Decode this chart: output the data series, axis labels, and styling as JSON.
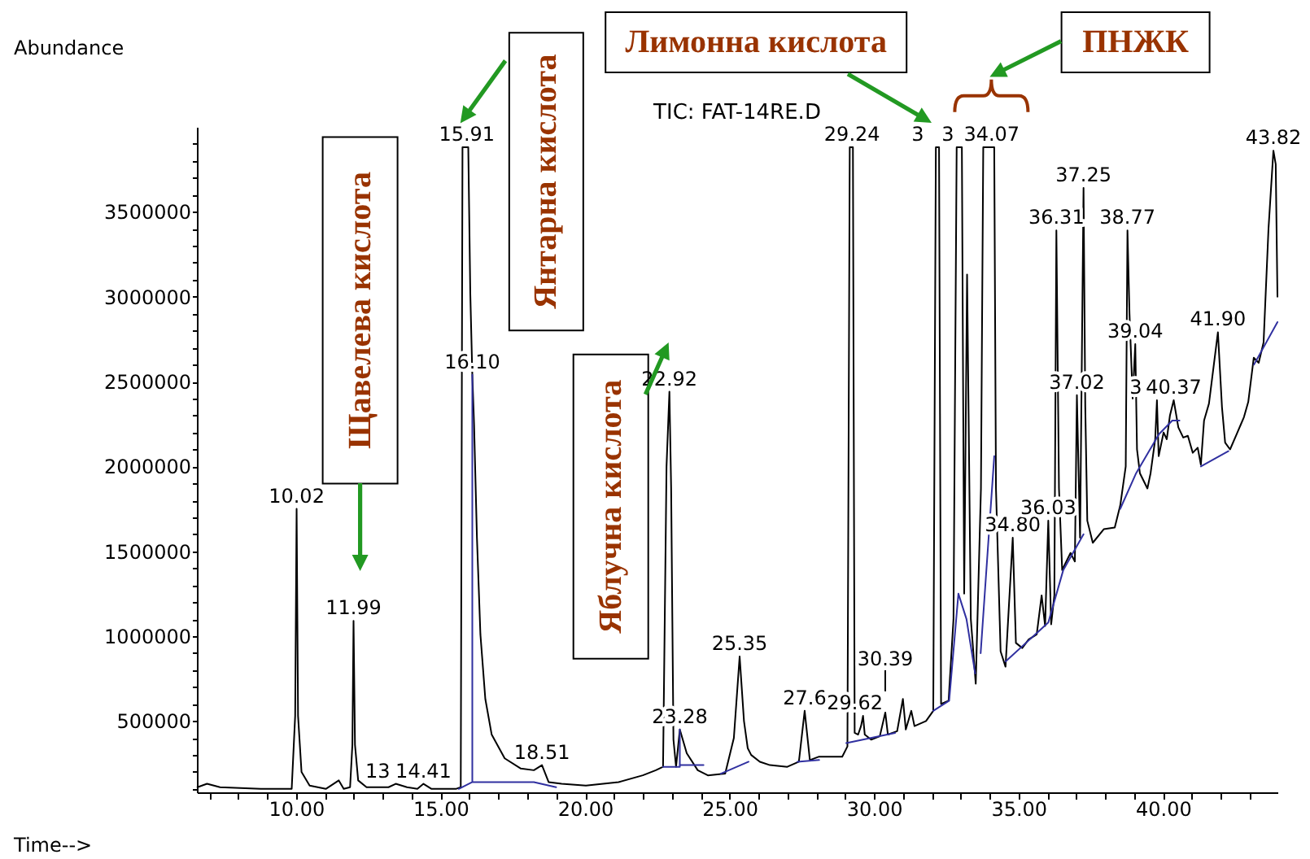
{
  "chart_data": {
    "type": "line",
    "title": "TIC: FAT-14RE.D",
    "xlabel": "Time-->",
    "ylabel": "Abundance",
    "xlim": [
      6.57,
      43.96
    ],
    "ylim": [
      80000,
      4000000
    ],
    "xticks": [
      {
        "value": 7,
        "label": null
      },
      {
        "value": 8,
        "label": null
      },
      {
        "value": 9,
        "label": null
      },
      {
        "value": 10,
        "label": "10.00"
      },
      {
        "value": 11,
        "label": null
      },
      {
        "value": 12,
        "label": null
      },
      {
        "value": 13,
        "label": null
      },
      {
        "value": 14,
        "label": null
      },
      {
        "value": 15,
        "label": "15.00"
      },
      {
        "value": 16,
        "label": null
      },
      {
        "value": 17,
        "label": null
      },
      {
        "value": 18,
        "label": null
      },
      {
        "value": 19,
        "label": null
      },
      {
        "value": 20,
        "label": "20.00"
      },
      {
        "value": 21,
        "label": null
      },
      {
        "value": 22,
        "label": null
      },
      {
        "value": 23,
        "label": null
      },
      {
        "value": 24,
        "label": null
      },
      {
        "value": 25,
        "label": "25.00"
      },
      {
        "value": 26,
        "label": null
      },
      {
        "value": 27,
        "label": null
      },
      {
        "value": 28,
        "label": null
      },
      {
        "value": 29,
        "label": null
      },
      {
        "value": 30,
        "label": "30.00"
      },
      {
        "value": 31,
        "label": null
      },
      {
        "value": 32,
        "label": null
      },
      {
        "value": 33,
        "label": null
      },
      {
        "value": 34,
        "label": null
      },
      {
        "value": 35,
        "label": "35.00"
      },
      {
        "value": 36,
        "label": null
      },
      {
        "value": 37,
        "label": null
      },
      {
        "value": 38,
        "label": null
      },
      {
        "value": 39,
        "label": null
      },
      {
        "value": 40,
        "label": "40.00"
      },
      {
        "value": 41,
        "label": null
      },
      {
        "value": 42,
        "label": null
      },
      {
        "value": 43,
        "label": null
      }
    ],
    "yticks": [
      {
        "value": 100000,
        "label": null
      },
      {
        "value": 200000,
        "label": null
      },
      {
        "value": 300000,
        "label": null
      },
      {
        "value": 400000,
        "label": null
      },
      500000,
      {
        "value": 600000,
        "label": null
      },
      {
        "value": 700000,
        "label": null
      },
      {
        "value": 800000,
        "label": null
      },
      {
        "value": 900000,
        "label": null
      },
      1000000,
      {
        "value": 1100000,
        "label": null
      },
      {
        "value": 1200000,
        "label": null
      },
      {
        "value": 1300000,
        "label": null
      },
      {
        "value": 1400000,
        "label": null
      },
      1500000,
      {
        "value": 1600000,
        "label": null
      },
      {
        "value": 1700000,
        "label": null
      },
      {
        "value": 1800000,
        "label": null
      },
      {
        "value": 1900000,
        "label": null
      },
      2000000,
      {
        "value": 2100000,
        "label": null
      },
      {
        "value": 2200000,
        "label": null
      },
      {
        "value": 2300000,
        "label": null
      },
      {
        "value": 2400000,
        "label": null
      },
      2500000,
      {
        "value": 2600000,
        "label": null
      },
      {
        "value": 2700000,
        "label": null
      },
      {
        "value": 2800000,
        "label": null
      },
      {
        "value": 2900000,
        "label": null
      },
      3000000,
      {
        "value": 3100000,
        "label": null
      },
      {
        "value": 3200000,
        "label": null
      },
      {
        "value": 3300000,
        "label": null
      },
      {
        "value": 3400000,
        "label": null
      },
      3500000,
      {
        "value": 3600000,
        "label": null
      },
      {
        "value": 3700000,
        "label": null
      },
      {
        "value": 3800000,
        "label": null
      },
      {
        "value": 3900000,
        "label": null
      }
    ],
    "series": [
      {
        "color": "#000000",
        "x": [
          6.59,
          6.92,
          7.37,
          8.78,
          9.85,
          9.97,
          10.02,
          10.07,
          10.19,
          10.47,
          11.03,
          11.48,
          11.65,
          11.87,
          11.95,
          11.99,
          12.04,
          12.15,
          12.44,
          13.2,
          13.45,
          13.84,
          14.2,
          14.41,
          14.69,
          15.53,
          15.7,
          15.76,
          15.96,
          16.03,
          16.1,
          16.16,
          16.26,
          16.38,
          16.55,
          16.77,
          17.22,
          17.78,
          18.23,
          18.51,
          18.74,
          19.19,
          20.03,
          21.16,
          22.0,
          22.45,
          22.7,
          22.82,
          22.92,
          22.98,
          23.06,
          23.15,
          23.28,
          23.52,
          23.9,
          24.25,
          24.85,
          25.15,
          25.35,
          25.5,
          25.63,
          25.75,
          26.05,
          26.4,
          27.0,
          27.4,
          27.6,
          27.78,
          28.1,
          28.9,
          29.08,
          29.16,
          29.27,
          29.33,
          29.45,
          29.55,
          29.62,
          29.68,
          29.9,
          30.2,
          30.39,
          30.48,
          30.8,
          31.0,
          31.1,
          31.29,
          31.4,
          31.8,
          32.05,
          32.14,
          32.25,
          32.32,
          32.58,
          32.75,
          32.86,
          33.04,
          33.12,
          33.22,
          33.35,
          33.52,
          33.7,
          33.78,
          34.16,
          34.22,
          34.38,
          34.55,
          34.8,
          34.91,
          35.13,
          35.35,
          35.63,
          35.8,
          35.92,
          36.03,
          36.13,
          36.24,
          36.31,
          36.4,
          36.51,
          36.8,
          36.95,
          37.02,
          37.13,
          37.25,
          37.31,
          37.38,
          37.57,
          37.95,
          38.33,
          38.52,
          38.71,
          38.77,
          38.84,
          38.95,
          39.04,
          39.1,
          39.2,
          39.46,
          39.57,
          39.73,
          39.79,
          39.85,
          40.02,
          40.13,
          40.24,
          40.37,
          40.53,
          40.7,
          40.86,
          41.03,
          41.2,
          41.31,
          41.42,
          41.59,
          41.9,
          42.04,
          42.15,
          42.32,
          42.55,
          42.8,
          42.95,
          43.14,
          43.31,
          43.48,
          43.65,
          43.82,
          43.9,
          43.96
        ],
        "values": [
          110000,
          130000,
          110000,
          100000,
          100000,
          530000,
          1750000,
          530000,
          200000,
          120000,
          100000,
          150000,
          100000,
          110000,
          360000,
          1090000,
          360000,
          150000,
          110000,
          110000,
          130000,
          110000,
          100000,
          130000,
          100000,
          100000,
          110000,
          3880000,
          3880000,
          3020000,
          2540000,
          2250000,
          1580000,
          1010000,
          630000,
          420000,
          280000,
          220000,
          210000,
          240000,
          140000,
          130000,
          120000,
          140000,
          180000,
          210000,
          230000,
          2000000,
          2440000,
          1870000,
          390000,
          230000,
          450000,
          310000,
          210000,
          180000,
          190000,
          400000,
          880000,
          500000,
          340000,
          300000,
          260000,
          240000,
          230000,
          260000,
          560000,
          270000,
          290000,
          290000,
          350000,
          3880000,
          3880000,
          430000,
          420000,
          470000,
          530000,
          420000,
          390000,
          410000,
          550000,
          420000,
          440000,
          630000,
          450000,
          560000,
          470000,
          500000,
          560000,
          3880000,
          3880000,
          600000,
          620000,
          1100000,
          3880000,
          3880000,
          1250000,
          3130000,
          1100000,
          720000,
          1870000,
          3880000,
          3880000,
          1870000,
          910000,
          820000,
          1580000,
          960000,
          930000,
          980000,
          1010000,
          1240000,
          1060000,
          1680000,
          1070000,
          1240000,
          3390000,
          1870000,
          1390000,
          1490000,
          1440000,
          2420000,
          1580000,
          3640000,
          2350000,
          1680000,
          1550000,
          1630000,
          1640000,
          1770000,
          2000000,
          3390000,
          2900000,
          2400000,
          2720000,
          2100000,
          1960000,
          1870000,
          1960000,
          2160000,
          2390000,
          2060000,
          2200000,
          2160000,
          2300000,
          2390000,
          2230000,
          2170000,
          2180000,
          2080000,
          2110000,
          2010000,
          2270000,
          2370000,
          2790000,
          2350000,
          2140000,
          2100000,
          2190000,
          2290000,
          2380000,
          2640000,
          2610000,
          2730000,
          3400000,
          3860000,
          3780000,
          3000000
        ]
      },
      {
        "color": "#3030a0",
        "x": [
          15.63,
          16.1,
          16.1,
          16.1,
          18.23,
          19.0,
          20.0,
          22.7,
          23.28,
          23.28,
          23.28,
          24.1,
          24.4,
          24.7,
          25.66,
          26.5,
          27.35,
          28.1,
          28.5,
          29.04,
          30.73,
          31.4,
          32.05,
          32.6,
          32.92,
          33.2,
          33.5,
          33.6,
          33.69,
          34.16,
          34.3,
          34.55,
          36.03,
          36.55,
          37.25,
          37.9,
          38.52,
          39.07,
          39.86,
          40.32,
          40.57,
          40.9,
          41.31,
          42.26,
          42.7,
          43.15,
          43.96
        ],
        "values": [
          100000,
          140000,
          2540000,
          140000,
          140000,
          110000,
          null,
          230000,
          230000,
          450000,
          240000,
          240000,
          null,
          190000,
          260000,
          null,
          260000,
          270000,
          null,
          370000,
          430000,
          null,
          560000,
          620000,
          1250000,
          1100000,
          780000,
          null,
          900000,
          2060000,
          null,
          850000,
          1080000,
          1390000,
          1600000,
          null,
          1750000,
          1960000,
          2190000,
          2270000,
          2270000,
          null,
          2000000,
          2090000,
          null,
          2600000,
          2850000
        ]
      }
    ],
    "annotations": [
      "Щавелева кислота",
      {
        "text": "Янтарна кислота",
        "x": 15.91,
        "y": 3880000
      },
      {
        "text": "Яблучна кислота",
        "x": 22.92,
        "y": 2440000
      },
      "Лимонна кислота",
      "ПНЖК",
      {
        "text": "10.02",
        "x": 10.02,
        "y": 1750000
      },
      {
        "text": "11.99",
        "x": 11.99,
        "y": 1090000
      },
      {
        "text": "13",
        "x": 13.45,
        "y": 130000
      },
      {
        "text": "14.41",
        "x": 14.41,
        "y": 130000
      },
      {
        "text": "15.91",
        "x": 15.91,
        "y": 3880000
      },
      {
        "text": "16.10",
        "x": 16.1,
        "y": 2540000
      },
      {
        "text": "18.51",
        "x": 18.51,
        "y": 240000
      },
      {
        "text": "22.92",
        "x": 22.92,
        "y": 2440000
      },
      {
        "text": "23.28",
        "x": 23.28,
        "y": 450000
      },
      {
        "text": "25.35",
        "x": 25.35,
        "y": 880000
      },
      {
        "text": "27.6",
        "x": 27.6,
        "y": 560000
      },
      {
        "text": "29.24",
        "x": 29.24,
        "y": 3880000
      },
      {
        "text": "29.62",
        "x": 29.62,
        "y": 530000
      },
      {
        "text": "30.39",
        "x": 30.39,
        "y": 550000
      },
      {
        "text": "3",
        "x": 32.19,
        "y": 3880000
      },
      {
        "text": "3",
        "x": 32.95,
        "y": 3880000
      },
      {
        "text": "34.07",
        "x": 34.07,
        "y": 3880000
      },
      {
        "text": "34.80",
        "x": 34.8,
        "y": 1580000
      },
      {
        "text": "36.03",
        "x": 36.03,
        "y": 1680000
      },
      {
        "text": "36.31",
        "x": 36.31,
        "y": 3390000
      },
      {
        "text": "37.02",
        "x": 37.02,
        "y": 2420000
      },
      {
        "text": "37.25",
        "x": 37.25,
        "y": 3640000
      },
      {
        "text": "38.77",
        "x": 38.77,
        "y": 3390000
      },
      {
        "text": "39.04",
        "x": 39.04,
        "y": 2720000
      },
      {
        "text": "3",
        "x": 39.79,
        "y": 2390000
      },
      {
        "text": "40.37",
        "x": 40.37,
        "y": 2390000
      },
      {
        "text": "41.90",
        "x": 41.9,
        "y": 2790000
      },
      {
        "text": "43.82",
        "x": 43.82,
        "y": 3860000
      }
    ]
  }
}
